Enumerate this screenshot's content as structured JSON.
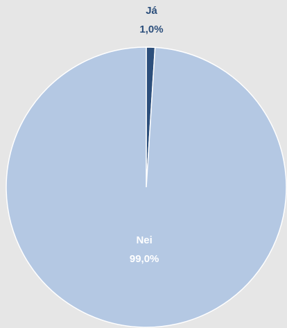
{
  "chart_data": {
    "type": "pie",
    "categories": [
      "Já",
      "Nei"
    ],
    "values": [
      1,
      99
    ],
    "value_labels": [
      "1,0%",
      "99,0%"
    ],
    "colors": [
      "#2c4f7c",
      "#b4c8e3"
    ]
  }
}
